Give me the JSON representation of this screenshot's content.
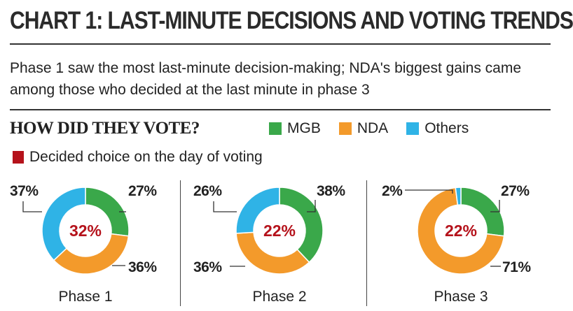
{
  "title": "CHART 1: LAST-MINUTE DECISIONS AND VOTING TRENDS",
  "subtitle": "Phase 1 saw the most last-minute decision-making; NDA's biggest gains came among those who decided at the last minute in phase 3",
  "section_title": "HOW DID THEY VOTE?",
  "legend": [
    {
      "label": "MGB",
      "color": "#3aa84a"
    },
    {
      "label": "NDA",
      "color": "#f39a2b"
    },
    {
      "label": "Others",
      "color": "#2fb3e6"
    }
  ],
  "decided_note": {
    "label": "Decided choice on the day of voting",
    "color": "#b5121b"
  },
  "chart_data": [
    {
      "type": "pie",
      "title": "Phase 1",
      "center_label": "32%",
      "categories": [
        "MGB",
        "NDA",
        "Others"
      ],
      "values": [
        27,
        36,
        37
      ],
      "labels": [
        "27%",
        "36%",
        "37%"
      ]
    },
    {
      "type": "pie",
      "title": "Phase 2",
      "center_label": "22%",
      "categories": [
        "MGB",
        "NDA",
        "Others"
      ],
      "values": [
        38,
        36,
        26
      ],
      "labels": [
        "38%",
        "36%",
        "26%"
      ]
    },
    {
      "type": "pie",
      "title": "Phase 3",
      "center_label": "22%",
      "categories": [
        "MGB",
        "NDA",
        "Others"
      ],
      "values": [
        27,
        71,
        2
      ],
      "labels": [
        "27%",
        "71%",
        "2%"
      ]
    }
  ]
}
